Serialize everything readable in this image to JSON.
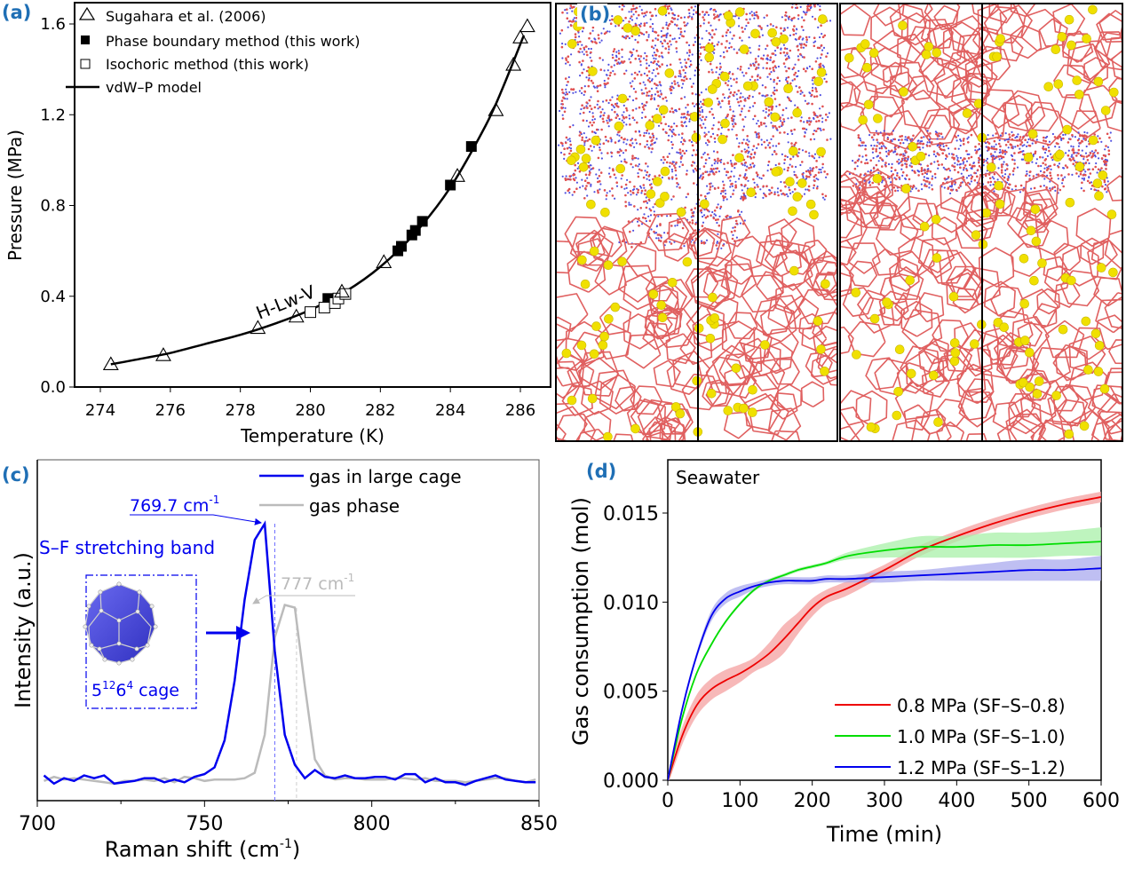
{
  "figure": {
    "panel_labels": [
      "(a)",
      "(b)",
      "(c)",
      "(d)"
    ]
  },
  "chart_data": [
    {
      "id": "a",
      "type": "scatter",
      "title": "",
      "xlabel": "Temperature (K)",
      "ylabel": "Pressure (MPa)",
      "xlim": [
        273.1,
        287.0
      ],
      "ylim": [
        0.0,
        1.7
      ],
      "xticks": [
        "274",
        "276",
        "278",
        "280",
        "282",
        "284",
        "286"
      ],
      "xtick_values": [
        274,
        276,
        278,
        280,
        282,
        284,
        286
      ],
      "yticks": [
        "0.0",
        "0.4",
        "0.8",
        "1.2",
        "1.6"
      ],
      "ytick_values": [
        0.0,
        0.4,
        0.8,
        1.2,
        1.6
      ],
      "legend_position": "top-left",
      "annotation": "H-Lw-V",
      "series": [
        {
          "name": "Sugahara et al. (2006)",
          "marker": "open-triangle",
          "x": [
            274.3,
            275.8,
            278.5,
            279.6,
            280.9,
            282.1,
            284.2,
            285.3,
            285.8,
            286.0,
            286.2
          ],
          "y": [
            0.1,
            0.14,
            0.26,
            0.31,
            0.42,
            0.55,
            0.93,
            1.22,
            1.42,
            1.54,
            1.59
          ]
        },
        {
          "name": "Phase boundary method (this work)",
          "marker": "filled-square",
          "x": [
            280.5,
            282.5,
            282.6,
            282.9,
            283.0,
            283.2,
            284.0,
            284.6
          ],
          "y": [
            0.39,
            0.6,
            0.62,
            0.67,
            0.69,
            0.73,
            0.89,
            1.06
          ]
        },
        {
          "name": "Isochoric method (this work)",
          "marker": "open-square",
          "x": [
            280.0,
            280.4,
            280.7,
            280.8,
            281.0
          ],
          "y": [
            0.33,
            0.35,
            0.37,
            0.39,
            0.41
          ]
        },
        {
          "name": "vdW–P model",
          "marker": "line",
          "x": [
            274.3,
            275.0,
            276.0,
            277.0,
            278.0,
            279.0,
            280.0,
            281.0,
            282.0,
            283.0,
            284.0,
            285.0,
            285.5,
            286.1
          ],
          "y": [
            0.1,
            0.12,
            0.15,
            0.19,
            0.23,
            0.28,
            0.34,
            0.42,
            0.53,
            0.68,
            0.88,
            1.15,
            1.32,
            1.55
          ]
        }
      ]
    },
    {
      "id": "c",
      "type": "line",
      "title": "",
      "xlabel": "Raman shift (cm",
      "xlabel_sup": "-1",
      "xlabel_tail": ")",
      "ylabel": "Intensity (a.u.)",
      "xlim": [
        700,
        850
      ],
      "ylim": [
        0,
        1.0
      ],
      "xticks": [
        "700",
        "750",
        "800",
        "850"
      ],
      "xtick_values": [
        700,
        750,
        800,
        850
      ],
      "minor_xtick_values": [
        725,
        775,
        825
      ],
      "legend_position": "top-right",
      "annotations": {
        "peak_large_cage": "769.7 cm",
        "peak_gas_phase": "777 cm",
        "unit_sup": "-1",
        "band": "S–F stretching band",
        "cage_label_base": "5",
        "cage_label_sup1": "12",
        "cage_label_mid": "6",
        "cage_label_sup2": "4",
        "cage_label_tail": " cage"
      },
      "peak_positions": [
        771,
        777.5
      ],
      "series": [
        {
          "name": "gas in large cage",
          "color": "#0000ee",
          "x": [
            702,
            705,
            708,
            711,
            714,
            717,
            720,
            723,
            726,
            729,
            732,
            735,
            738,
            741,
            744,
            747,
            750,
            753,
            756,
            759,
            762,
            765,
            768,
            771,
            774,
            777,
            780,
            783,
            786,
            789,
            792,
            795,
            798,
            801,
            804,
            807,
            810,
            813,
            816,
            819,
            822,
            825,
            828,
            831,
            834,
            837,
            840,
            843,
            846,
            849
          ],
          "y": [
            0.07,
            0.04,
            0.06,
            0.05,
            0.07,
            0.06,
            0.07,
            0.04,
            0.045,
            0.05,
            0.06,
            0.06,
            0.045,
            0.055,
            0.045,
            0.065,
            0.075,
            0.1,
            0.2,
            0.42,
            0.72,
            0.94,
            1.0,
            0.53,
            0.22,
            0.11,
            0.06,
            0.09,
            0.065,
            0.06,
            0.07,
            0.06,
            0.06,
            0.065,
            0.065,
            0.055,
            0.075,
            0.075,
            0.045,
            0.06,
            0.045,
            0.045,
            0.035,
            0.05,
            0.06,
            0.07,
            0.055,
            0.05,
            0.045,
            0.045
          ]
        },
        {
          "name": "gas phase",
          "color": "#bbbbbb",
          "x": [
            702,
            705,
            708,
            711,
            714,
            717,
            720,
            723,
            726,
            729,
            732,
            735,
            738,
            741,
            744,
            747,
            750,
            753,
            756,
            759,
            762,
            765,
            768,
            771,
            774,
            777,
            780,
            783,
            786,
            789,
            792,
            795,
            798,
            801,
            804,
            807,
            810,
            813,
            816,
            819,
            822,
            825,
            828,
            831,
            834,
            837,
            840,
            843,
            846,
            849
          ],
          "y": [
            0.05,
            0.065,
            0.055,
            0.06,
            0.055,
            0.05,
            0.045,
            0.04,
            0.05,
            0.05,
            0.055,
            0.05,
            0.06,
            0.045,
            0.065,
            0.06,
            0.05,
            0.055,
            0.055,
            0.055,
            0.06,
            0.08,
            0.22,
            0.58,
            0.7,
            0.69,
            0.4,
            0.13,
            0.07,
            0.055,
            0.06,
            0.06,
            0.055,
            0.055,
            0.055,
            0.06,
            0.06,
            0.055,
            0.06,
            0.05,
            0.05,
            0.05,
            0.045,
            0.05,
            0.055,
            0.06,
            0.06,
            0.05,
            0.045,
            0.055
          ]
        }
      ]
    },
    {
      "id": "d",
      "type": "line",
      "title": "Seawater",
      "xlabel": "Time (min)",
      "ylabel": "Gas consumption (mol)",
      "xlim": [
        0,
        600
      ],
      "ylim": [
        0.0,
        0.018
      ],
      "xticks": [
        "0",
        "100",
        "200",
        "300",
        "400",
        "500",
        "600"
      ],
      "xtick_values": [
        0,
        100,
        200,
        300,
        400,
        500,
        600
      ],
      "yticks": [
        "0.000",
        "0.005",
        "0.010",
        "0.015"
      ],
      "ytick_values": [
        0.0,
        0.005,
        0.01,
        0.015
      ],
      "legend_position": "bottom-right",
      "series": [
        {
          "name": "0.8 MPa (SF–S–0.8)",
          "color": "#ee0000",
          "band_color": "#f4a0a0",
          "x": [
            0,
            20,
            40,
            60,
            80,
            100,
            120,
            140,
            160,
            180,
            200,
            220,
            250,
            300,
            350,
            400,
            450,
            500,
            550,
            600
          ],
          "y": [
            0.0,
            0.0025,
            0.0042,
            0.0051,
            0.0056,
            0.006,
            0.0065,
            0.0071,
            0.0079,
            0.0088,
            0.0097,
            0.0103,
            0.0108,
            0.0118,
            0.0129,
            0.0137,
            0.0144,
            0.015,
            0.0155,
            0.0159
          ],
          "band": [
            0.0003,
            0.0005,
            0.0006,
            0.0006,
            0.0006,
            0.0005,
            0.0004,
            0.0006,
            0.0008,
            0.0006,
            0.0005,
            0.0004,
            0.0004,
            0.0003,
            0.0003,
            0.0003,
            0.0003,
            0.0003,
            0.0003,
            0.0003
          ]
        },
        {
          "name": "1.0 MPa (SF–S–1.0)",
          "color": "#00dd00",
          "band_color": "#a8f0a8",
          "x": [
            0,
            20,
            40,
            60,
            80,
            100,
            120,
            140,
            160,
            180,
            200,
            220,
            250,
            300,
            350,
            400,
            450,
            500,
            550,
            600
          ],
          "y": [
            0.0,
            0.0035,
            0.006,
            0.0076,
            0.0089,
            0.0099,
            0.0107,
            0.0112,
            0.0115,
            0.0118,
            0.012,
            0.0122,
            0.0126,
            0.0129,
            0.0131,
            0.0131,
            0.0132,
            0.0132,
            0.0133,
            0.0134
          ],
          "band": [
            0.0,
            0.0001,
            0.0001,
            0.0001,
            0.0001,
            0.0001,
            0.0001,
            0.0001,
            0.0001,
            0.0001,
            0.0001,
            0.0001,
            0.0002,
            0.0004,
            0.0006,
            0.0006,
            0.0007,
            0.0007,
            0.0007,
            0.0008
          ]
        },
        {
          "name": "1.2 MPa (SF–S–1.2)",
          "color": "#0000ee",
          "band_color": "#aaaaee",
          "x": [
            0,
            20,
            40,
            60,
            80,
            100,
            120,
            140,
            160,
            180,
            200,
            220,
            250,
            300,
            350,
            400,
            450,
            500,
            550,
            600
          ],
          "y": [
            0.0,
            0.004,
            0.007,
            0.0092,
            0.0102,
            0.0106,
            0.0109,
            0.0111,
            0.0112,
            0.0112,
            0.0112,
            0.0113,
            0.0113,
            0.0114,
            0.0115,
            0.0116,
            0.0117,
            0.0118,
            0.0118,
            0.0119
          ],
          "band": [
            0.0,
            0.0002,
            0.0002,
            0.0003,
            0.0003,
            0.0003,
            0.0002,
            0.0002,
            0.0002,
            0.0002,
            0.0002,
            0.0002,
            0.0002,
            0.0003,
            0.0003,
            0.0004,
            0.0005,
            0.0006,
            0.0006,
            0.0007
          ]
        }
      ]
    }
  ],
  "panel_b": {
    "description": "Molecular dynamics snapshots: two simulation boxes",
    "colors": {
      "cage_bonds": "#e06060",
      "guest_atoms": "#f0e000",
      "water_o": "#e05050",
      "water_h": "#5050e0",
      "box_border": "#000000"
    }
  }
}
